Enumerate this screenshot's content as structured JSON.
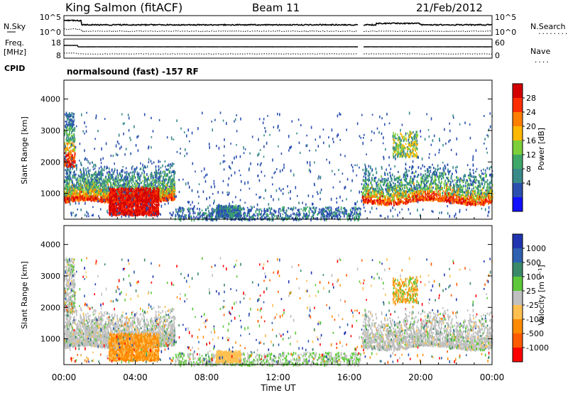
{
  "header": {
    "station": "King Salmon (fitACF)",
    "beam": "Beam 11",
    "date": "21/Feb/2012"
  },
  "top_panel": {
    "left_label": "N.Sky",
    "left_ticks": [
      "10^5",
      "10^0"
    ],
    "right_ticks": [
      "10^5",
      "10^0"
    ],
    "right_label": "N.Search",
    "right_legend": "........"
  },
  "freq_panel": {
    "left_label_line1": "Freq.",
    "left_label_line2": "[MHz]",
    "left_ticks": [
      "18",
      "8"
    ],
    "right_ticks": [
      "60",
      "0"
    ],
    "right_label": "Nave",
    "right_legend": "...."
  },
  "cpid": {
    "label": "CPID",
    "value": "normalsound (fast) -157 RF"
  },
  "chart_data": [
    {
      "type": "heatmap",
      "name": "power",
      "ylabel": "Slant Range [km]",
      "yticks": [
        "1000",
        "2000",
        "3000",
        "4000"
      ],
      "ylim": [
        180,
        4600
      ],
      "xlabel": "",
      "xlim_hours": [
        0,
        24
      ],
      "colorbar_label": "Power [dB]",
      "colorbar_ticks": [
        "28",
        "24",
        "20",
        "16",
        "12",
        "8",
        "4"
      ],
      "colorbar_colors": [
        "#d40000",
        "#ff2e00",
        "#ff7f00",
        "#ffb800",
        "#7ccf3a",
        "#3ea868",
        "#3a8a8a",
        "#2a4fb0",
        "#1010ff"
      ]
    },
    {
      "type": "heatmap",
      "name": "velocity",
      "ylabel": "Slant Range [km]",
      "yticks": [
        "1000",
        "2000",
        "3000",
        "4000"
      ],
      "ylim": [
        180,
        4600
      ],
      "xlabel": "Time UT",
      "xticks": [
        "00:00",
        "04:00",
        "08:00",
        "12:00",
        "16:00",
        "20:00",
        "00:00"
      ],
      "xlim_hours": [
        0,
        24
      ],
      "colorbar_label": "Velocity [m s⁻¹]",
      "colorbar_ticks": [
        "1000",
        "500",
        "100",
        "25",
        "-25",
        "-100",
        "-500",
        "-1000"
      ],
      "colorbar_colors": [
        "#2034b0",
        "#2e5fb0",
        "#3a8a6a",
        "#5cc83a",
        "#c0c0c0",
        "#ffc050",
        "#ff8a00",
        "#ff5a00",
        "#ff0000"
      ]
    }
  ]
}
